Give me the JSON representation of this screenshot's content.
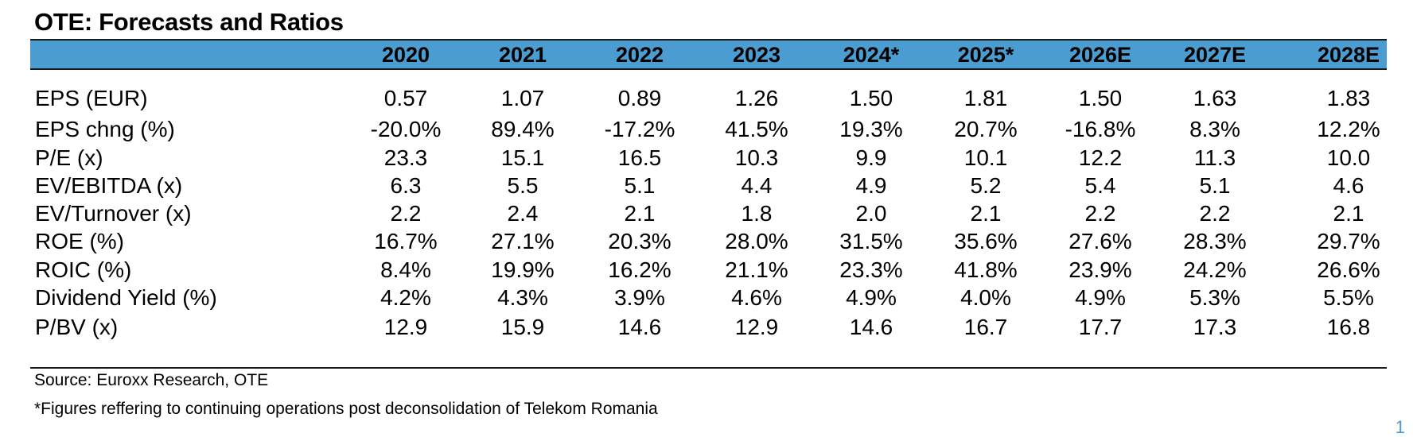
{
  "title": "OTE: Forecasts and Ratios",
  "accent_color": "#4a9cd1",
  "columns": [
    "2020",
    "2021",
    "2022",
    "2023",
    "2024*",
    "2025*",
    "2026E",
    "2027E",
    "2028E"
  ],
  "rows": [
    {
      "label": "EPS (EUR)",
      "values": [
        "0.57",
        "1.07",
        "0.89",
        "1.26",
        "1.50",
        "1.81",
        "1.50",
        "1.63",
        "1.83"
      ]
    },
    {
      "label": "EPS chng (%)",
      "values": [
        "-20.0%",
        "89.4%",
        "-17.2%",
        "41.5%",
        "19.3%",
        "20.7%",
        "-16.8%",
        "8.3%",
        "12.2%"
      ]
    },
    {
      "label": "P/E (x)",
      "values": [
        "23.3",
        "15.1",
        "16.5",
        "10.3",
        "9.9",
        "10.1",
        "12.2",
        "11.3",
        "10.0"
      ]
    },
    {
      "label": "EV/EBITDA (x)",
      "values": [
        "6.3",
        "5.5",
        "5.1",
        "4.4",
        "4.9",
        "5.2",
        "5.4",
        "5.1",
        "4.6"
      ]
    },
    {
      "label": "EV/Turnover (x)",
      "values": [
        "2.2",
        "2.4",
        "2.1",
        "1.8",
        "2.0",
        "2.1",
        "2.2",
        "2.2",
        "2.1"
      ]
    },
    {
      "label": "ROE (%)",
      "values": [
        "16.7%",
        "27.1%",
        "20.3%",
        "28.0%",
        "31.5%",
        "35.6%",
        "27.6%",
        "28.3%",
        "29.7%"
      ]
    },
    {
      "label": "ROIC (%)",
      "values": [
        "8.4%",
        "19.9%",
        "16.2%",
        "21.1%",
        "23.3%",
        "41.8%",
        "23.9%",
        "24.2%",
        "26.6%"
      ]
    },
    {
      "label": "Dividend Yield (%)",
      "values": [
        "4.2%",
        "4.3%",
        "3.9%",
        "4.6%",
        "4.9%",
        "4.0%",
        "4.9%",
        "5.3%",
        "5.5%"
      ]
    },
    {
      "label": "P/BV (x)",
      "values": [
        "12.9",
        "15.9",
        "14.6",
        "12.9",
        "14.6",
        "16.7",
        "17.7",
        "17.3",
        "16.8"
      ]
    }
  ],
  "source": "Source: Euroxx Research, OTE",
  "footnote": "*Figures reffering to continuing operations post deconsolidation of Telekom Romania",
  "page_number": "1"
}
